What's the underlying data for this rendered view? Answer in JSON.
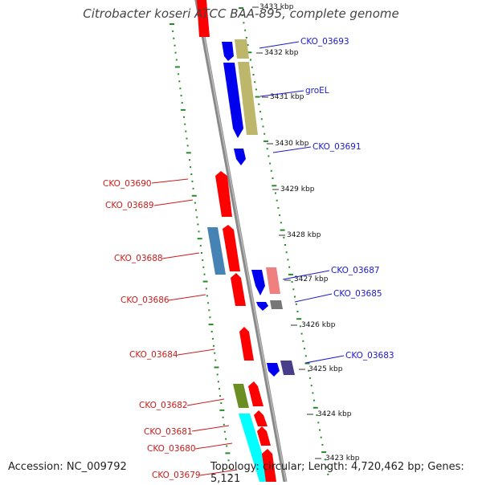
{
  "title": "Citrobacter koseri ATCC BAA-895, complete genome",
  "accession": "Accession: NC_009792",
  "summary": "Topology: circular; Length: 4,720,462 bp; Genes: 5,121",
  "ruler_labels": [
    {
      "text": "3433 kbp",
      "kb": 3433
    },
    {
      "text": "3432 kbp",
      "kb": 3432
    },
    {
      "text": "3431 kbp",
      "kb": 3431
    },
    {
      "text": "3430 kbp",
      "kb": 3430
    },
    {
      "text": "3429 kbp",
      "kb": 3429
    },
    {
      "text": "3428 kbp",
      "kb": 3428
    },
    {
      "text": "3427 kbp",
      "kb": 3427
    },
    {
      "text": "3426 kbp",
      "kb": 3426
    },
    {
      "text": "3425 kbp",
      "kb": 3425
    },
    {
      "text": "3424 kbp",
      "kb": 3424
    },
    {
      "text": "3423 kbp",
      "kb": 3423
    }
  ],
  "gene_labels": [
    {
      "text": "CKO_03693",
      "strand": "reverse",
      "color": "#1a1acc"
    },
    {
      "text": "groEL",
      "strand": "reverse",
      "color": "#1a1acc"
    },
    {
      "text": "CKO_03691",
      "strand": "reverse",
      "color": "#1a1acc"
    },
    {
      "text": "CKO_03690",
      "strand": "forward",
      "color": "#cc1a1a"
    },
    {
      "text": "CKO_03689",
      "strand": "forward",
      "color": "#cc1a1a"
    },
    {
      "text": "CKO_03688",
      "strand": "forward",
      "color": "#cc1a1a"
    },
    {
      "text": "CKO_03687",
      "strand": "reverse",
      "color": "#1a1acc"
    },
    {
      "text": "CKO_03686",
      "strand": "forward",
      "color": "#cc1a1a"
    },
    {
      "text": "CKO_03685",
      "strand": "reverse",
      "color": "#1a1acc"
    },
    {
      "text": "CKO_03684",
      "strand": "forward",
      "color": "#cc1a1a"
    },
    {
      "text": "CKO_03683",
      "strand": "reverse",
      "color": "#1a1acc"
    },
    {
      "text": "CKO_03682",
      "strand": "forward",
      "color": "#cc1a1a"
    },
    {
      "text": "CKO_03681",
      "strand": "forward",
      "color": "#cc1a1a"
    },
    {
      "text": "CKO_03680",
      "strand": "forward",
      "color": "#cc1a1a"
    },
    {
      "text": "CKO_03679",
      "strand": "forward",
      "color": "#cc1a1a"
    }
  ],
  "colors": {
    "forward": "#ff0000",
    "reverse": "#0000ee",
    "backbone": "#888888",
    "dots": "#2a8a2a",
    "cog_khaki": "#bdb76b",
    "cog_steel": "#4682b4",
    "cog_pink": "#f08080",
    "cog_grey": "#777777",
    "cog_slate": "#483d8b",
    "cog_olive": "#6b8e23",
    "cog_cyan": "#00ffff"
  }
}
